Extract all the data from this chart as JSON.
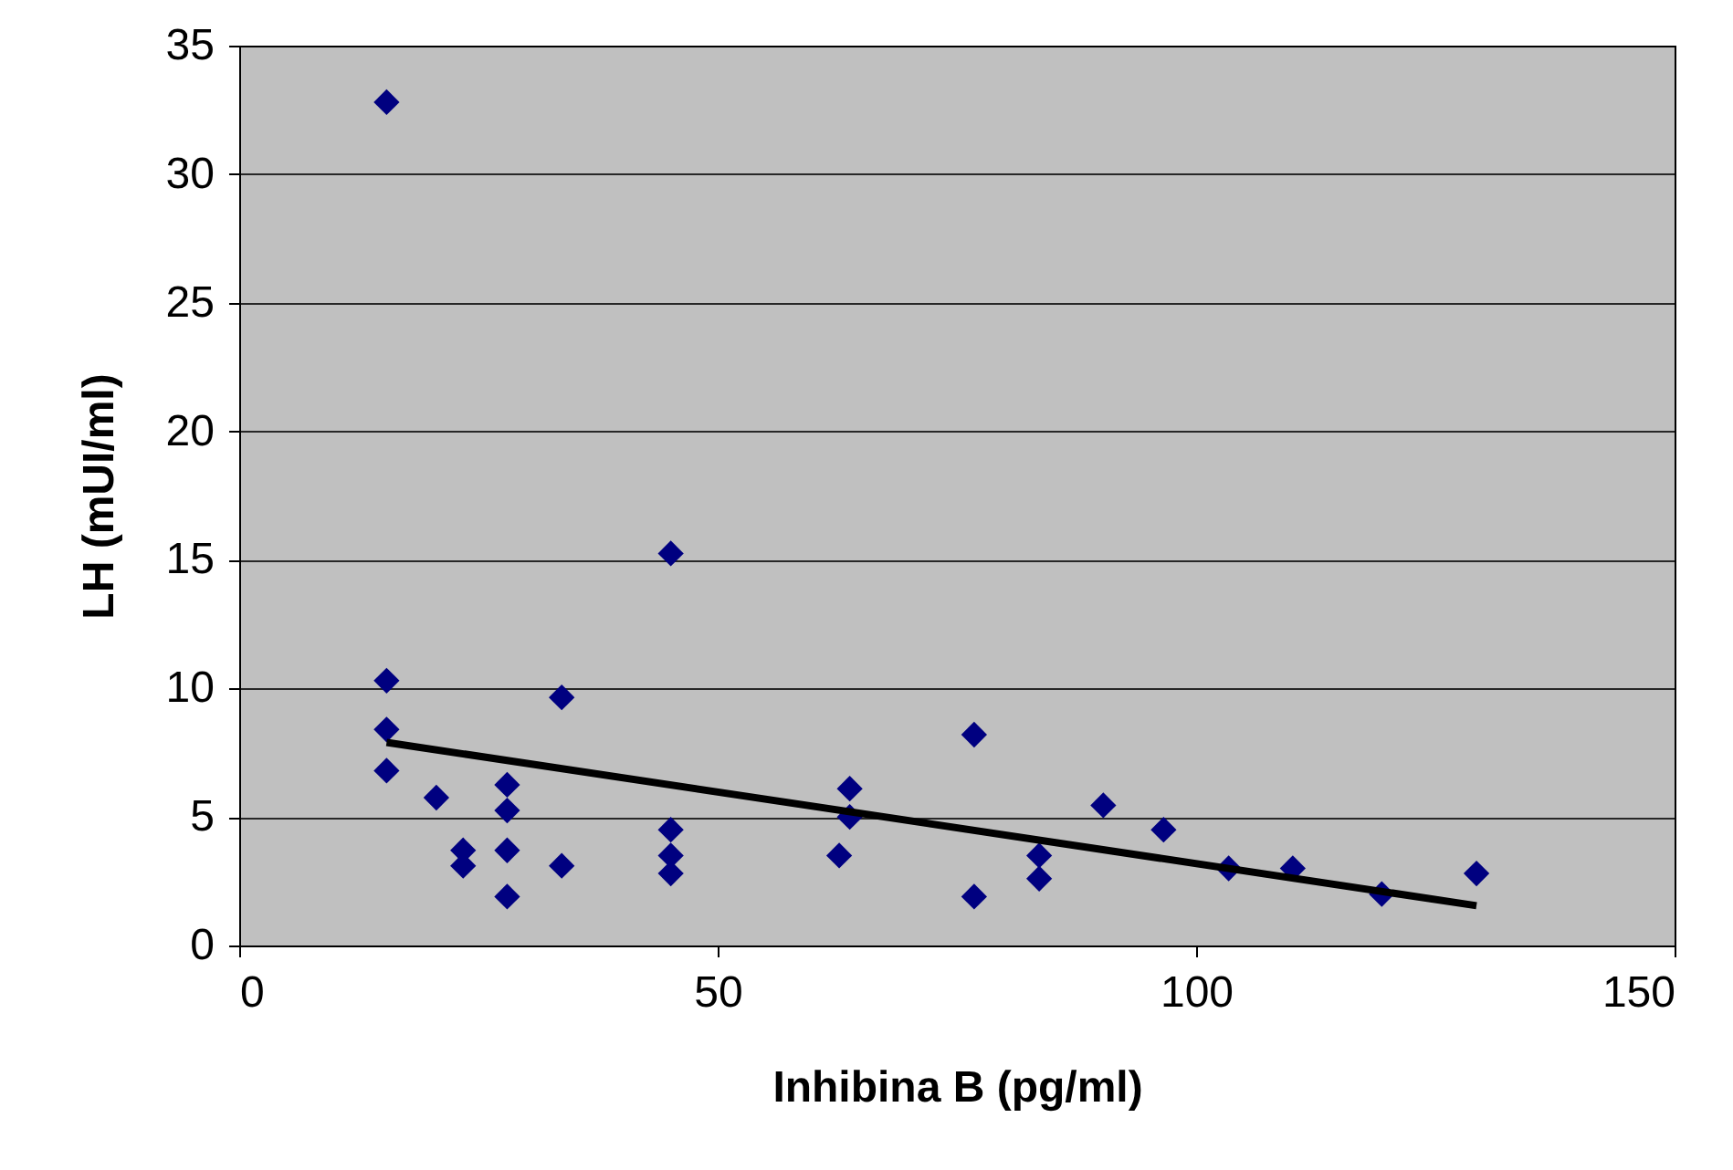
{
  "chart_data": {
    "type": "scatter",
    "xlabel": "Inhibina B (pg/ml)",
    "ylabel": "LH (mUI/ml)",
    "xlim": [
      0,
      150
    ],
    "xticks": [
      0,
      50,
      100,
      150
    ],
    "ylim": [
      0,
      35
    ],
    "yticks": [
      0,
      5,
      10,
      15,
      20,
      25,
      30,
      35
    ],
    "grid": "y",
    "series": [
      {
        "marker": "diamond",
        "color": "#000080",
        "x": [
          15.4,
          15.4,
          15.4,
          15.4,
          20.6,
          23.4,
          23.4,
          28,
          28,
          28,
          28,
          33.7,
          33.7,
          45.1,
          45.1,
          45.1,
          45.1,
          62.7,
          63.8,
          63.8,
          76.8,
          76.8,
          83.6,
          83.6,
          90.3,
          96.6,
          103.4,
          110.1,
          119.4,
          129.3
        ],
        "values": [
          32.8,
          10.3,
          8.4,
          6.8,
          5.75,
          3.7,
          3.1,
          6.25,
          5.25,
          3.7,
          1.9,
          9.65,
          3.1,
          15.25,
          4.5,
          3.5,
          2.8,
          3.5,
          6.1,
          5.0,
          8.2,
          1.9,
          3.5,
          2.6,
          5.45,
          4.5,
          3.0,
          3.0,
          2.0,
          2.8
        ]
      },
      {
        "type": "line",
        "color": "#000000",
        "x": [
          15.4,
          129.3
        ],
        "values": [
          7.9,
          1.55
        ]
      }
    ]
  }
}
